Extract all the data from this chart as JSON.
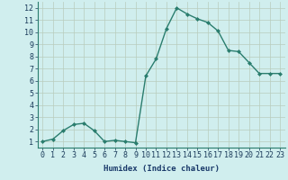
{
  "x": [
    0,
    1,
    2,
    3,
    4,
    5,
    6,
    7,
    8,
    9,
    10,
    11,
    12,
    13,
    14,
    15,
    16,
    17,
    18,
    19,
    20,
    21,
    22,
    23
  ],
  "y": [
    1.0,
    1.2,
    1.9,
    2.4,
    2.5,
    1.9,
    1.0,
    1.1,
    1.0,
    0.9,
    6.4,
    7.8,
    10.3,
    12.0,
    11.5,
    11.1,
    10.8,
    10.1,
    8.5,
    8.4,
    7.5,
    6.6,
    6.6,
    6.6
  ],
  "line_color": "#2a7d6e",
  "marker": "D",
  "marker_size": 2.0,
  "linewidth": 1.0,
  "bg_color": "#d0eeee",
  "grid_color": "#b8ccbc",
  "xlabel": "Humidex (Indice chaleur)",
  "xlabel_fontsize": 6.5,
  "tick_fontsize": 6.0,
  "xlim": [
    -0.5,
    23.5
  ],
  "ylim": [
    0.5,
    12.5
  ],
  "yticks": [
    1,
    2,
    3,
    4,
    5,
    6,
    7,
    8,
    9,
    10,
    11,
    12
  ],
  "xticks": [
    0,
    1,
    2,
    3,
    4,
    5,
    6,
    7,
    8,
    9,
    10,
    11,
    12,
    13,
    14,
    15,
    16,
    17,
    18,
    19,
    20,
    21,
    22,
    23
  ]
}
